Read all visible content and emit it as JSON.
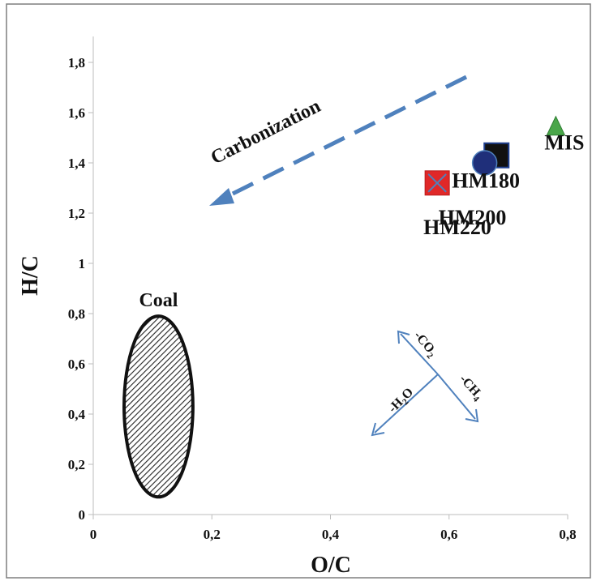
{
  "chart_data": {
    "type": "scatter",
    "xlabel": "O/C",
    "ylabel": "H/C",
    "xlim": [
      0,
      0.8
    ],
    "ylim": [
      0,
      1.8
    ],
    "x_ticks": [
      "0",
      "0,2",
      "0,4",
      "0,6",
      "0,8"
    ],
    "y_ticks": [
      "0",
      "0,2",
      "0,4",
      "0,6",
      "0,8",
      "1",
      "1,2",
      "1,4",
      "1,6",
      "1,8"
    ],
    "grid": false,
    "points": [
      {
        "label": "MIS",
        "x": 0.78,
        "y": 1.53,
        "marker": "triangle",
        "color": "#4aa64a"
      },
      {
        "label": "HM180",
        "x": 0.68,
        "y": 1.43,
        "marker": "square",
        "color": "#111111"
      },
      {
        "label": "HM200",
        "x": 0.66,
        "y": 1.4,
        "marker": "circle",
        "color": "#1f2f7a"
      },
      {
        "label": "HM220",
        "x": 0.58,
        "y": 1.32,
        "marker": "square-x",
        "color": "#e02828"
      }
    ],
    "regions": [
      {
        "label": "Coal",
        "cx": 0.11,
        "cy": 0.43,
        "rx": 0.058,
        "ry": 0.36
      }
    ],
    "annotations": {
      "carbonization": "Carbonization",
      "co2": "-CO",
      "co2_sub": "2",
      "h2o": "-H",
      "h2o_sub": "2",
      "h2o_tail": "O",
      "ch4": "-CH",
      "ch4_sub": "4"
    },
    "colors": {
      "arrow": "#4f81bd",
      "frame": "#7f7f7f"
    }
  }
}
